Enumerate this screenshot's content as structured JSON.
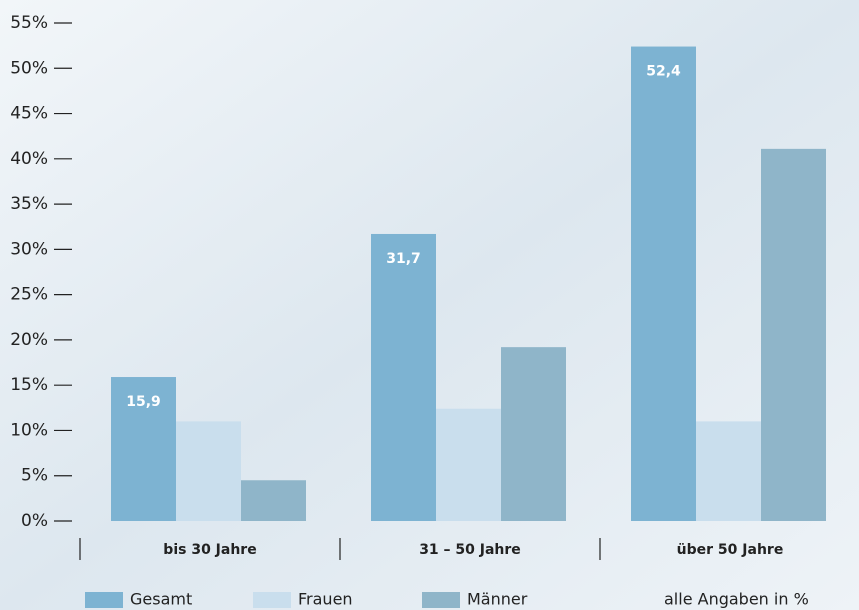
{
  "chart_data": {
    "type": "bar",
    "categories": [
      "bis 30 Jahre",
      "31 – 50 Jahre",
      "über 50 Jahre"
    ],
    "series": [
      {
        "name": "Gesamt",
        "color": "#7db3d2",
        "values": [
          15.9,
          31.7,
          52.4
        ],
        "value_labels": [
          "15,9",
          "31,7",
          "52,4"
        ]
      },
      {
        "name": "Frauen",
        "color": "#c9deed",
        "values": [
          11.0,
          12.4,
          11.0
        ]
      },
      {
        "name": "Männer",
        "color": "#8fb5c9",
        "values": [
          4.5,
          19.2,
          41.1
        ]
      }
    ],
    "ylim": [
      0,
      55
    ],
    "yticks": [
      {
        "value": 0,
        "label": "0%"
      },
      {
        "value": 5,
        "label": "5%"
      },
      {
        "value": 10,
        "label": "10%"
      },
      {
        "value": 15,
        "label": "15%"
      },
      {
        "value": 20,
        "label": "20%"
      },
      {
        "value": 25,
        "label": "25%"
      },
      {
        "value": 30,
        "label": "30%"
      },
      {
        "value": 35,
        "label": "35%"
      },
      {
        "value": 40,
        "label": "40%"
      },
      {
        "value": 45,
        "label": "45%"
      },
      {
        "value": 50,
        "label": "50%"
      },
      {
        "value": 55,
        "label": "55%"
      }
    ],
    "annotation": "alle Angaben in %",
    "legend": "bottom"
  }
}
